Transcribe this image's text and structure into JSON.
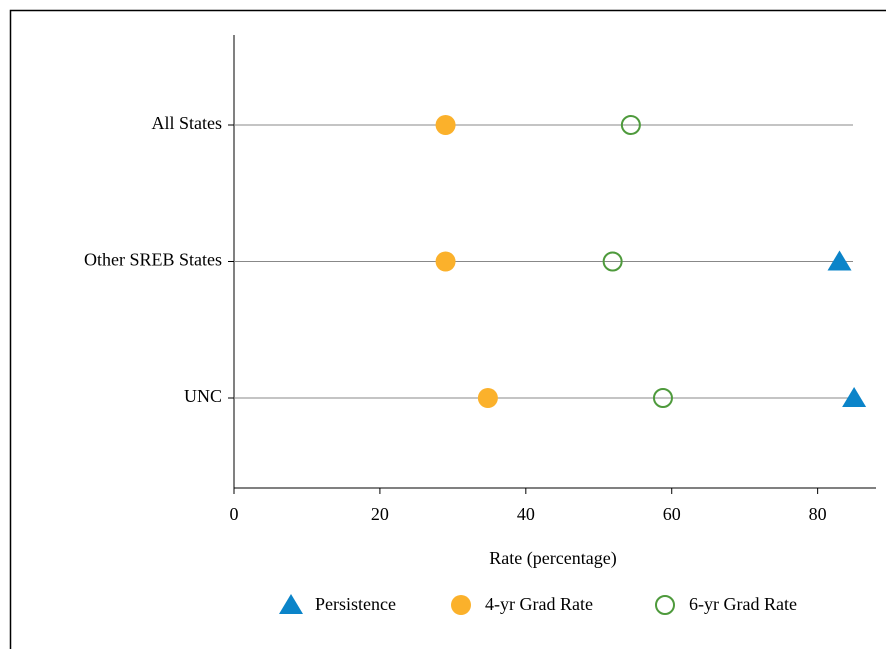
{
  "chart_data": {
    "type": "dot",
    "x_label": "Rate (percentage)",
    "categories": [
      "All States",
      "Other SREB States",
      "UNC"
    ],
    "series": [
      {
        "name": "Persistence",
        "color": "#0b84c9",
        "marker": "triangle",
        "values": [
          null,
          83.0,
          85.0
        ]
      },
      {
        "name": "4-yr Grad Rate",
        "color": "#fbb12b",
        "marker": "circle",
        "values": [
          29.0,
          29.0,
          34.8
        ]
      },
      {
        "name": "6-yr Grad Rate",
        "color": "#4e9a3c",
        "marker": "open-circle",
        "values": [
          54.4,
          51.9,
          58.8
        ]
      }
    ],
    "xlim": [
      0,
      88
    ],
    "xticks": [
      0,
      20,
      40,
      60,
      80
    ]
  }
}
